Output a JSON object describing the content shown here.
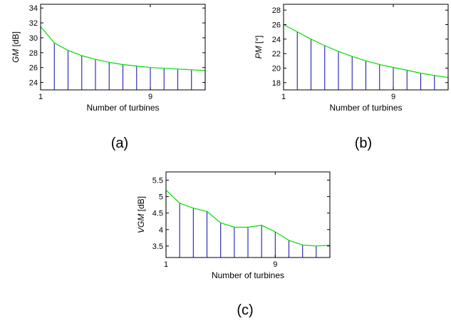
{
  "chart_data": [
    {
      "id": "a",
      "type": "stem+line",
      "panel_label": "(a)",
      "xlabel": "Number of turbines",
      "ylabel_var": "GM",
      "ylabel_unit": " [dB]",
      "x": [
        1,
        2,
        3,
        4,
        5,
        6,
        7,
        8,
        9,
        10,
        11,
        12,
        13
      ],
      "values": [
        31.5,
        29.3,
        28.3,
        27.6,
        27.1,
        26.7,
        26.4,
        26.2,
        26.0,
        25.9,
        25.8,
        25.7,
        25.6
      ],
      "xlim": [
        1,
        13
      ],
      "ylim": [
        23,
        34.5
      ],
      "xticks": [
        1,
        9
      ],
      "yticks": [
        24,
        26,
        28,
        30,
        32,
        34
      ],
      "stem_color": "#1f1fb4",
      "line_color": "#00dd00"
    },
    {
      "id": "b",
      "type": "stem+line",
      "panel_label": "(b)",
      "xlabel": "Number of turbines",
      "ylabel_var": "PM",
      "ylabel_unit": " [°]",
      "x": [
        1,
        2,
        3,
        4,
        5,
        6,
        7,
        8,
        9,
        10,
        11,
        12,
        13
      ],
      "values": [
        26.0,
        25.0,
        24.0,
        23.1,
        22.3,
        21.6,
        21.0,
        20.5,
        20.1,
        19.7,
        19.3,
        19.0,
        18.7
      ],
      "xlim": [
        1,
        13
      ],
      "ylim": [
        17,
        28.8
      ],
      "xticks": [
        1,
        9
      ],
      "yticks": [
        18,
        20,
        22,
        24,
        26,
        28
      ],
      "stem_color": "#1f1fb4",
      "line_color": "#00dd00"
    },
    {
      "id": "c",
      "type": "stem+line",
      "panel_label": "(c)",
      "xlabel": "Number of turbines",
      "ylabel_var": "VGM",
      "ylabel_unit": " [dB]",
      "x": [
        1,
        2,
        3,
        4,
        5,
        6,
        7,
        8,
        9,
        10,
        11,
        12,
        13
      ],
      "values": [
        5.2,
        4.8,
        4.65,
        4.55,
        4.2,
        4.07,
        4.07,
        4.13,
        3.93,
        3.67,
        3.53,
        3.5,
        3.52
      ],
      "xlim": [
        1,
        13
      ],
      "ylim": [
        3.15,
        5.75
      ],
      "xticks": [
        1,
        9
      ],
      "yticks": [
        3.5,
        4,
        4.5,
        5,
        5.5
      ],
      "stem_color": "#1f1fb4",
      "line_color": "#00dd00"
    }
  ]
}
